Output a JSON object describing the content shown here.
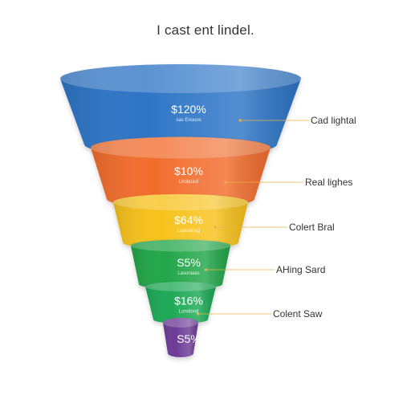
{
  "chart_data": {
    "type": "funnel",
    "title": "I cast ent lindel.",
    "stages": [
      {
        "value_label": "$120%",
        "sub_label": "sas Enouos",
        "callout": "Cad lightal",
        "color": "#2f74c6"
      },
      {
        "value_label": "$10%",
        "sub_label": "Lhobuicd",
        "callout": "Real lighes",
        "color": "#f26d2d"
      },
      {
        "value_label": "$64%",
        "sub_label": "Lasooirtag",
        "callout": "Colert Bral",
        "color": "#f7c21a"
      },
      {
        "value_label": "S5%",
        "sub_label": "Lasoniaes",
        "callout": "AHing Sard",
        "color": "#22a64a"
      },
      {
        "value_label": "$16%",
        "sub_label": "Lonolond",
        "callout": "Colent Saw",
        "color": "#1fa954"
      },
      {
        "value_label": "S5%",
        "sub_label": "",
        "callout": "",
        "color": "#6c3b96"
      }
    ]
  }
}
